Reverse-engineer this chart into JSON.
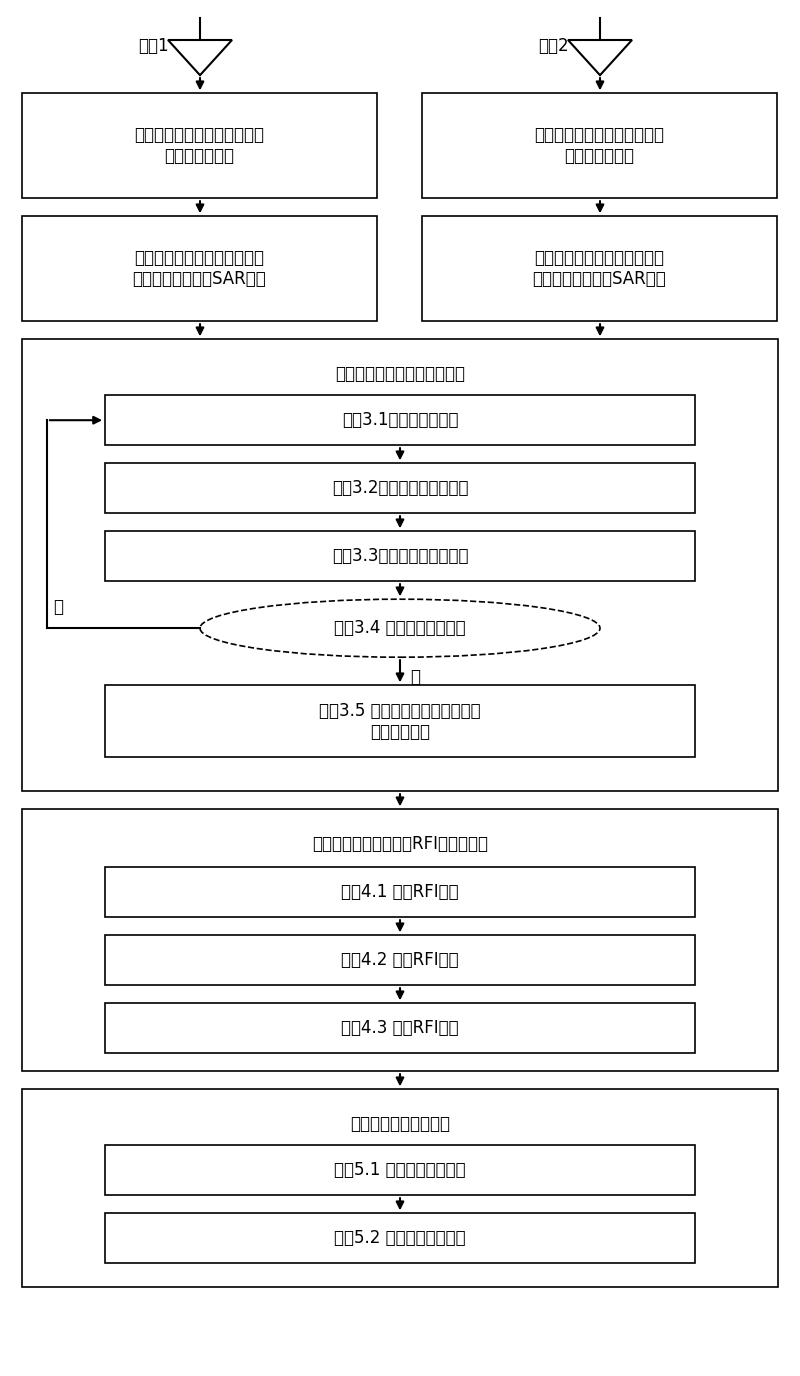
{
  "figsize": [
    8.0,
    13.76
  ],
  "dpi": 100,
  "bg_color": "#ffffff",
  "box_facecolor": "#ffffff",
  "box_edgecolor": "#000000",
  "font_color": "#000000",
  "font_size": 12,
  "channel1_label": "通道1",
  "channel2_label": "通道2",
  "step1_left": "第一步，基于回波的接收机频\n率特性误差校正",
  "step1_right": "第一步，基于回波的接收机频\n率特性误差校正",
  "step2_left": "第二步，基于校正后时频域回\n波的距离谱均衡和SAR成像",
  "step2_right": "第二步，基于校正后时频域回\n波的距离谱均衡和SAR成像",
  "step3_title": "第三步，基于时域图像的配准",
  "step31": "步骤3.1选取感兴趣区域",
  "step32": "步骤3.2估计通道间时间误差",
  "step33": "步骤3.3估计通道间相位误差",
  "step34": "步骤3.4 判断循环是否结束",
  "step35": "步骤3.5 获得配准后的时域图像和\n时频域干涉图",
  "no_label": "否",
  "yes_label": "是",
  "step4_title": "第四步，基于时频域的RFI检测及抑制",
  "step41": "步骤4.1 检测RFI信号",
  "step42": "步骤4.2 抑制RFI幅度",
  "step43": "步骤4.3 抑制RFI相位",
  "step5_title": "第五步，残留误差校正",
  "step51": "步骤5.1 残留幅度误差校正",
  "step52": "步骤5.2 残留相位误差校正",
  "xlim": [
    0,
    8
  ],
  "ylim": [
    0,
    13.76
  ]
}
